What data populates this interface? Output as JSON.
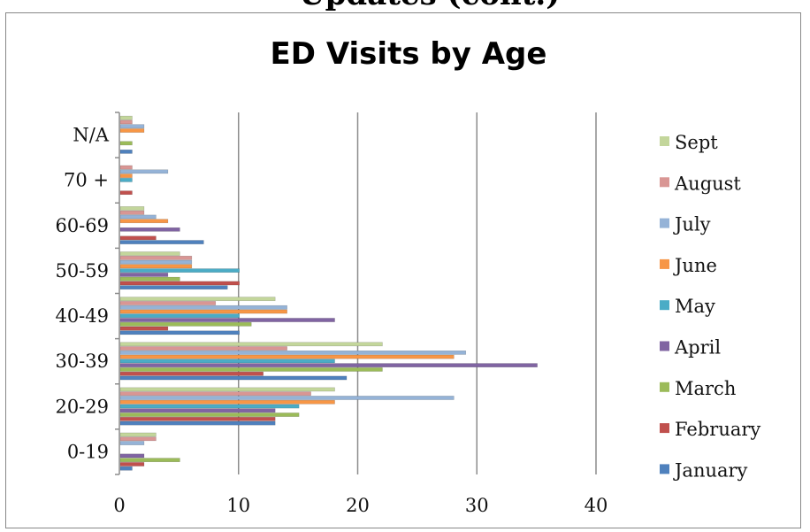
{
  "top_fragment": "Updates (cont.)",
  "chart_data": {
    "type": "bar",
    "orientation": "horizontal",
    "title": "ED Visits by Age",
    "xlabel": "",
    "ylabel": "",
    "xlim": [
      0,
      40
    ],
    "x_ticks": [
      "0",
      "10",
      "20",
      "30",
      "40"
    ],
    "grid": "vertical major gridlines",
    "legend_position": "right",
    "categories": [
      "0-19",
      "20-29",
      "30-39",
      "40-49",
      "50-59",
      "60-69",
      "70 +",
      "N/A"
    ],
    "series": [
      {
        "name": "January",
        "color": "#4f81bd",
        "values": [
          1,
          13,
          19,
          10,
          9,
          7,
          0,
          1
        ]
      },
      {
        "name": "February",
        "color": "#c0504d",
        "values": [
          2,
          13,
          12,
          4,
          10,
          3,
          1,
          0
        ]
      },
      {
        "name": "March",
        "color": "#9bbb59",
        "values": [
          5,
          15,
          22,
          11,
          5,
          0,
          0,
          1
        ]
      },
      {
        "name": "April",
        "color": "#8064a2",
        "values": [
          2,
          13,
          35,
          18,
          4,
          5,
          0,
          0
        ]
      },
      {
        "name": "May",
        "color": "#4bacc6",
        "values": [
          0,
          15,
          18,
          10,
          10,
          0,
          1,
          0
        ]
      },
      {
        "name": "June",
        "color": "#f79646",
        "values": [
          0,
          18,
          28,
          14,
          6,
          4,
          1,
          2
        ]
      },
      {
        "name": "July",
        "color": "#95b3d7",
        "values": [
          2,
          28,
          29,
          14,
          6,
          3,
          4,
          2
        ]
      },
      {
        "name": "August",
        "color": "#d99694",
        "values": [
          3,
          16,
          14,
          8,
          6,
          2,
          1,
          1
        ]
      },
      {
        "name": "Sept",
        "color": "#c3d69b",
        "values": [
          3,
          18,
          22,
          13,
          5,
          2,
          0,
          1
        ]
      }
    ]
  }
}
